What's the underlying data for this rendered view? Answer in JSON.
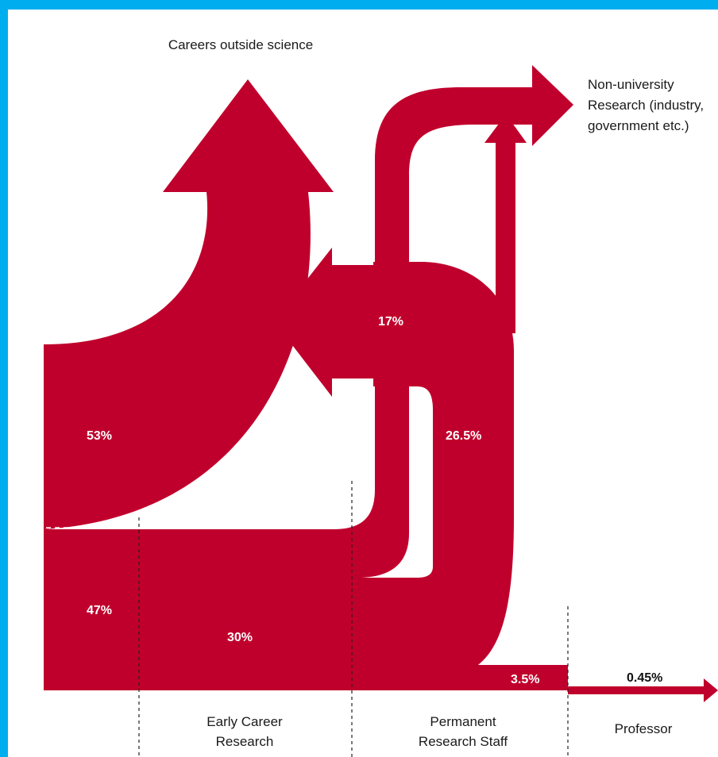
{
  "colors": {
    "background_border": "#00AEEF",
    "flow": "#C0002C",
    "panel": "#FFFFFF"
  },
  "destinations": {
    "careers_outside": "Careers outside science",
    "non_university": [
      "Non-university",
      "Research (industry,",
      "government etc.)"
    ]
  },
  "stages": {
    "early_career": [
      "Early Career",
      "Research"
    ],
    "permanent": [
      "Permanent",
      "Research Staff"
    ],
    "professor": "Professor"
  },
  "percentages": {
    "careers_outside": "53%",
    "remaining_after_phd": "47%",
    "non_university": "17%",
    "early_career": "30%",
    "from_permanent": "26.5%",
    "permanent_staff": "3.5%",
    "professor": "0.45%"
  }
}
